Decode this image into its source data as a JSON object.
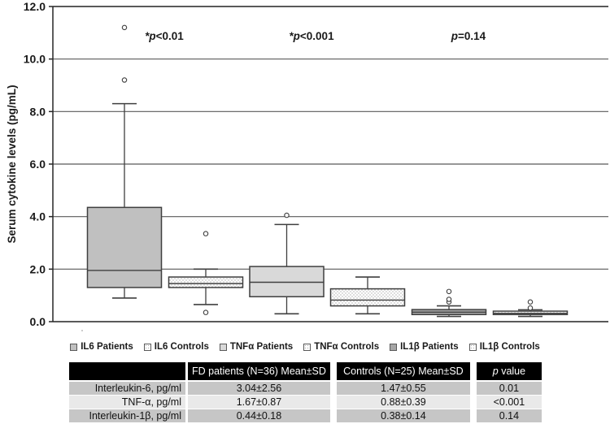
{
  "chart_data": {
    "type": "box",
    "title": "",
    "xlabel": "",
    "ylabel": "Serum cytokine levels (pg/mL)",
    "ylim": [
      0,
      12
    ],
    "yticks": [
      0,
      2,
      4,
      6,
      8,
      10,
      12
    ],
    "ytick_labels": [
      "0.0",
      "2.0",
      "4.0",
      "6.0",
      "8.0",
      "10.0",
      "12.0"
    ],
    "grid": true,
    "legend_position": "bottom",
    "categories": [
      "IL6 Patients",
      "IL6 Controls",
      "TNFα Patients",
      "TNFα Controls",
      "IL1β Patients",
      "IL1β Controls"
    ],
    "series": [
      {
        "name": "IL6 Patients",
        "fill": "#c0c0c0",
        "pattern": false,
        "whisker_low": 0.9,
        "q1": 1.3,
        "median": 1.95,
        "q3": 4.35,
        "whisker_high": 8.3,
        "outliers": [
          9.2,
          11.2
        ]
      },
      {
        "name": "IL6 Controls",
        "fill": "#ffffff",
        "pattern": true,
        "whisker_low": 0.65,
        "q1": 1.3,
        "median": 1.45,
        "q3": 1.7,
        "whisker_high": 2.0,
        "outliers": [
          0.35,
          3.35
        ]
      },
      {
        "name": "TNFα Patients",
        "fill": "#d9d9d9",
        "pattern": false,
        "whisker_low": 0.3,
        "q1": 0.95,
        "median": 1.5,
        "q3": 2.1,
        "whisker_high": 3.7,
        "outliers": [
          4.05
        ]
      },
      {
        "name": "TNFα Controls",
        "fill": "#ffffff",
        "pattern": true,
        "whisker_low": 0.3,
        "q1": 0.6,
        "median": 0.82,
        "q3": 1.25,
        "whisker_high": 1.7,
        "outliers": []
      },
      {
        "name": "IL1β Patients",
        "fill": "#a6a6a6",
        "pattern": false,
        "whisker_low": 0.2,
        "q1": 0.27,
        "median": 0.36,
        "q3": 0.46,
        "whisker_high": 0.6,
        "outliers": [
          0.75,
          0.85,
          1.15
        ]
      },
      {
        "name": "IL1β Controls",
        "fill": "#ffffff",
        "pattern": true,
        "whisker_low": 0.2,
        "q1": 0.27,
        "median": 0.32,
        "q3": 0.4,
        "whisker_high": 0.45,
        "outliers": [
          0.52,
          0.75
        ]
      }
    ],
    "annotations": [
      {
        "segments": [
          {
            "t": "*p",
            "italic": true
          },
          {
            "t": "<0.01",
            "italic": false
          }
        ]
      },
      {
        "segments": [
          {
            "t": "*p",
            "italic": true
          },
          {
            "t": "<0.001",
            "italic": false
          }
        ]
      },
      {
        "segments": [
          {
            "t": "p",
            "italic": true
          },
          {
            "t": "=0.14",
            "italic": false
          }
        ]
      }
    ]
  },
  "legend": {
    "items": [
      "IL6 Patients",
      "IL6 Controls",
      "TNFα Patients",
      "TNFα Controls",
      "IL1β Patients",
      "IL1β Controls"
    ]
  },
  "table": {
    "headers": [
      "",
      "FD patients (N=36) Mean±SD",
      "Controls (N=25) Mean±SD",
      "p value"
    ],
    "rows": [
      {
        "label": "Interleukin-6, pg/ml",
        "fd": "3.04±2.56",
        "controls": "1.47±0.55",
        "p": "0.01"
      },
      {
        "label": "TNF-α, pg/ml",
        "fd": "1.67±0.87",
        "controls": "0.88±0.39",
        "p": "<0.001"
      },
      {
        "label": "Interleukin-1β, pg/ml",
        "fd": "0.44±0.18",
        "controls": "0.38±0.14",
        "p": "0.14"
      }
    ]
  },
  "colors": {
    "grid": "#595959",
    "axis": "#262626",
    "box_stroke": "#3f3f3f",
    "text": "#1a1a1a",
    "table_header_bg": "#000000",
    "table_row_dark": "#c6c6c6",
    "table_row_light": "#e9e9e9"
  }
}
